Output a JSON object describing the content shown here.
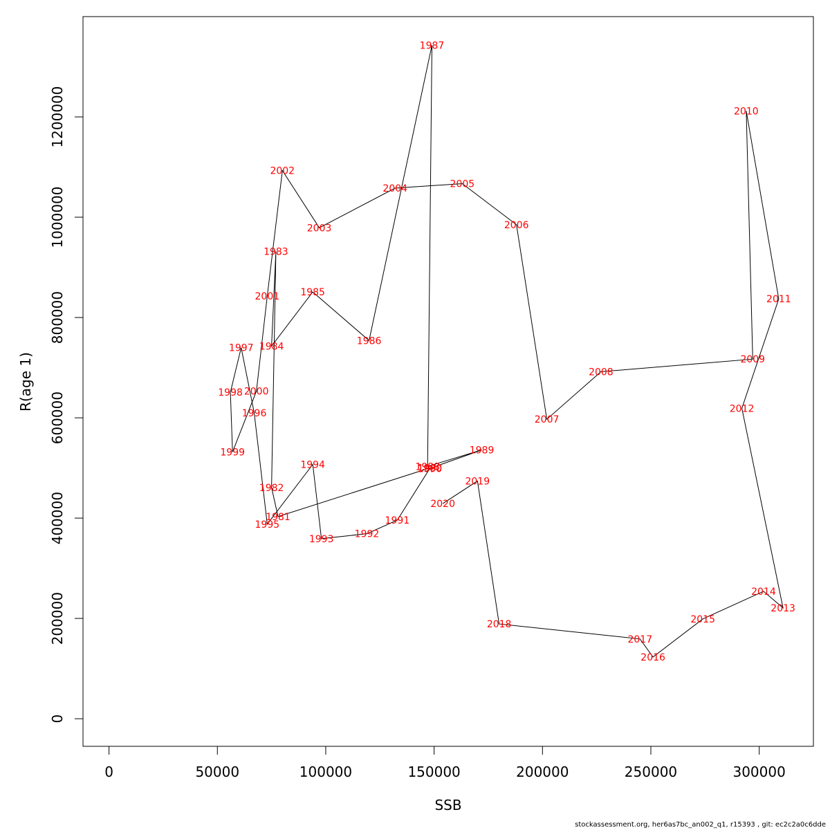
{
  "chart_data": {
    "type": "line",
    "xlabel": "SSB",
    "ylabel": "R(age 1)",
    "xlim": [
      -12000,
      325000
    ],
    "ylim": [
      -55000,
      1400000
    ],
    "xticks": [
      0,
      50000,
      100000,
      150000,
      200000,
      250000,
      300000
    ],
    "yticks": [
      0,
      200000,
      400000,
      600000,
      800000,
      1000000,
      1200000
    ],
    "xtick_labels": [
      "0",
      "50000",
      "100000",
      "150000",
      "200000",
      "250000",
      "300000"
    ],
    "ytick_labels": [
      "0",
      "200000",
      "400000",
      "600000",
      "800000",
      "1000000",
      "1200000"
    ],
    "grid": false,
    "line_color": "#000000",
    "label_color": "#ff0000",
    "points": [
      {
        "year": "1980",
        "ssb": 148000,
        "r": 500000
      },
      {
        "year": "1981",
        "ssb": 78000,
        "r": 403000
      },
      {
        "year": "1982",
        "ssb": 75000,
        "r": 461000
      },
      {
        "year": "1983",
        "ssb": 77000,
        "r": 932000
      },
      {
        "year": "1984",
        "ssb": 75000,
        "r": 743000
      },
      {
        "year": "1985",
        "ssb": 94000,
        "r": 851000
      },
      {
        "year": "1986",
        "ssb": 120000,
        "r": 754000
      },
      {
        "year": "1987",
        "ssb": 149000,
        "r": 1343000
      },
      {
        "year": "1988",
        "ssb": 147000,
        "r": 503000
      },
      {
        "year": "1989",
        "ssb": 172000,
        "r": 536000
      },
      {
        "year": "1990",
        "ssb": 148000,
        "r": 499000
      },
      {
        "year": "1991",
        "ssb": 133000,
        "r": 396000
      },
      {
        "year": "1992",
        "ssb": 119000,
        "r": 369000
      },
      {
        "year": "1993",
        "ssb": 98000,
        "r": 359000
      },
      {
        "year": "1994",
        "ssb": 94000,
        "r": 507000
      },
      {
        "year": "1995",
        "ssb": 73000,
        "r": 388000
      },
      {
        "year": "1996",
        "ssb": 67000,
        "r": 610000
      },
      {
        "year": "1997",
        "ssb": 61000,
        "r": 740000
      },
      {
        "year": "1998",
        "ssb": 56000,
        "r": 651000
      },
      {
        "year": "1999",
        "ssb": 57000,
        "r": 532000
      },
      {
        "year": "2000",
        "ssb": 68000,
        "r": 653000
      },
      {
        "year": "2001",
        "ssb": 73000,
        "r": 843000
      },
      {
        "year": "2002",
        "ssb": 80000,
        "r": 1093000
      },
      {
        "year": "2003",
        "ssb": 97000,
        "r": 979000
      },
      {
        "year": "2004",
        "ssb": 132000,
        "r": 1058000
      },
      {
        "year": "2005",
        "ssb": 163000,
        "r": 1067000
      },
      {
        "year": "2006",
        "ssb": 188000,
        "r": 985000
      },
      {
        "year": "2007",
        "ssb": 202000,
        "r": 597000
      },
      {
        "year": "2008",
        "ssb": 227000,
        "r": 692000
      },
      {
        "year": "2009",
        "ssb": 297000,
        "r": 717000
      },
      {
        "year": "2010",
        "ssb": 294000,
        "r": 1212000
      },
      {
        "year": "2011",
        "ssb": 309000,
        "r": 837000
      },
      {
        "year": "2012",
        "ssb": 292000,
        "r": 619000
      },
      {
        "year": "2013",
        "ssb": 311000,
        "r": 221000
      },
      {
        "year": "2014",
        "ssb": 302000,
        "r": 254000
      },
      {
        "year": "2015",
        "ssb": 274000,
        "r": 199000
      },
      {
        "year": "2016",
        "ssb": 251000,
        "r": 123000
      },
      {
        "year": "2017",
        "ssb": 245000,
        "r": 159000
      },
      {
        "year": "2018",
        "ssb": 180000,
        "r": 189000
      },
      {
        "year": "2019",
        "ssb": 170000,
        "r": 474000
      },
      {
        "year": "2020",
        "ssb": 154000,
        "r": 429000
      }
    ]
  },
  "footer": "stockassessment.org, her6as7bc_an002_q1, r15393 , git: ec2c2a0c6dde"
}
